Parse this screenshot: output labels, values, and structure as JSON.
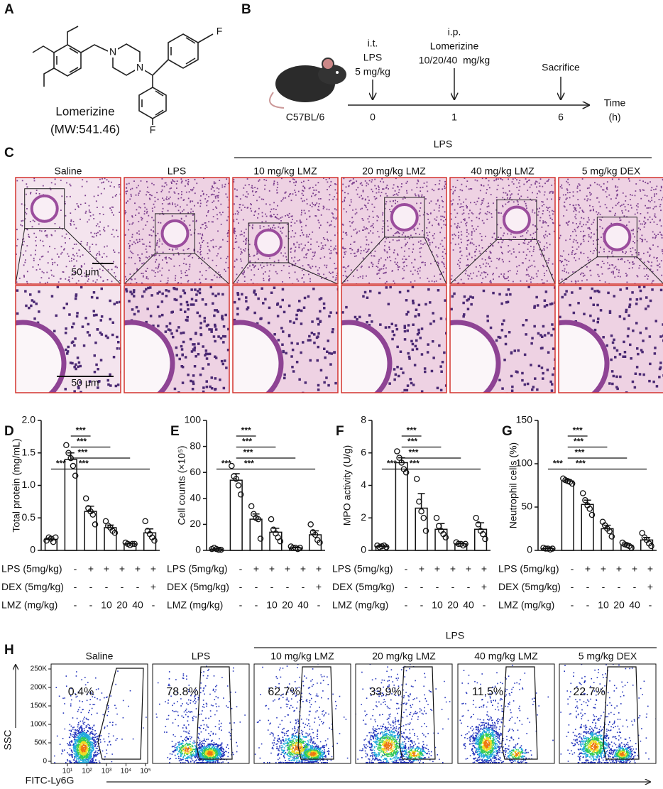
{
  "panel_labels": [
    "A",
    "B",
    "C",
    "D",
    "E",
    "F",
    "G",
    "H"
  ],
  "structure": {
    "atoms": [
      "N",
      "N",
      "F",
      "F"
    ],
    "name": "Lomerizine",
    "mw": "(MW:541.46)"
  },
  "timeline": {
    "strain": "C57BL/6",
    "events": [
      {
        "route": "i.t.",
        "drug": "LPS",
        "dose": "5 mg/kg",
        "time": "0"
      },
      {
        "route": "i.p.",
        "drug": "Lomerizine",
        "dose": "10/20/40  mg/kg",
        "time": "1"
      },
      {
        "drug": "Sacrifice",
        "time": "6"
      }
    ],
    "axis_label": "Time",
    "axis_unit": "(h)"
  },
  "histology": {
    "treatment_header": "LPS",
    "groups": [
      "Saline",
      "LPS",
      "10 mg/kg LMZ",
      "20 mg/kg LMZ",
      "40 mg/kg LMZ",
      "5 mg/kg DEX"
    ],
    "scale_bars": [
      "50 μm",
      "50 μm"
    ]
  },
  "chart_data": [
    {
      "type": "bar",
      "y_label": "Total protein (mg/mL)",
      "color": "#ffffff",
      "values": [
        0.17,
        1.4,
        0.6,
        0.35,
        0.1,
        0.27
      ],
      "errors": [
        0.02,
        0.1,
        0.08,
        0.04,
        0.01,
        0.06
      ],
      "points": [
        [
          0.15,
          0.2,
          0.18,
          0.13,
          0.2
        ],
        [
          1.62,
          1.5,
          1.42,
          1.3,
          1.15
        ],
        [
          0.8,
          0.65,
          0.6,
          0.55,
          0.4
        ],
        [
          0.45,
          0.38,
          0.35,
          0.3,
          0.27
        ],
        [
          0.12,
          0.1,
          0.08,
          0.1,
          0.1
        ],
        [
          0.45,
          0.3,
          0.25,
          0.2,
          0.15
        ]
      ],
      "ylim": [
        0,
        2
      ],
      "yticks": [
        0,
        0.5,
        {
          "value": 1,
          "label": "1.0"
        },
        1.5,
        {
          "value": 2,
          "label": "2.0"
        }
      ],
      "significance_labels": [
        "***",
        "***",
        "***",
        "***",
        "***"
      ],
      "conditions": [
        {
          "name": "LPS (5mg/kg)",
          "values": [
            "-",
            "+",
            "+",
            "+",
            "+",
            "+"
          ]
        },
        {
          "name": "DEX (5mg/kg)",
          "values": [
            "-",
            "-",
            "-",
            "-",
            "-",
            "+"
          ]
        },
        {
          "name": "LMZ (mg/kg)",
          "values": [
            "-",
            "-",
            "10",
            "20",
            "40",
            "-"
          ]
        }
      ]
    },
    {
      "type": "bar",
      "y_label": "Cell counts (×10⁵)",
      "color": "#ffffff",
      "values": [
        1,
        54,
        24,
        14,
        2,
        12
      ],
      "errors": [
        0.4,
        5,
        4,
        3,
        0.5,
        3
      ],
      "points": [
        [
          1,
          2,
          1,
          0.5,
          0.5
        ],
        [
          65,
          57,
          55,
          50,
          43
        ],
        [
          34,
          28,
          25,
          24,
          9
        ],
        [
          24,
          16,
          13,
          10,
          7
        ],
        [
          3,
          2,
          2,
          1,
          2
        ],
        [
          20,
          14,
          12,
          8,
          6
        ]
      ],
      "ylim": [
        0,
        100
      ],
      "yticks": [
        0,
        20,
        40,
        60,
        80,
        100
      ],
      "significance_labels": [
        "***",
        "***",
        "***",
        "***",
        "***"
      ],
      "conditions": [
        {
          "name": "LPS (5mg/kg)",
          "values": [
            "-",
            "+",
            "+",
            "+",
            "+",
            "+"
          ]
        },
        {
          "name": "DEX (5mg/kg)",
          "values": [
            "-",
            "-",
            "-",
            "-",
            "-",
            "+"
          ]
        },
        {
          "name": "LMZ (mg/kg)",
          "values": [
            "-",
            "-",
            "10",
            "20",
            "40",
            "-"
          ]
        }
      ]
    },
    {
      "type": "bar",
      "y_label": "MPO activity (U/g)",
      "color": "#ffffff",
      "values": [
        0.25,
        5.4,
        2.6,
        1.3,
        0.4,
        1.3
      ],
      "errors": [
        0.03,
        0.3,
        0.9,
        0.35,
        0.05,
        0.4
      ],
      "points": [
        [
          0.3,
          0.2,
          0.25,
          0.3,
          0.2
        ],
        [
          6.1,
          5.7,
          5.4,
          5.0,
          4.8
        ],
        [
          4.4,
          3,
          2.4,
          2,
          1.2
        ],
        [
          2,
          1.5,
          1.2,
          1,
          0.8
        ],
        [
          0.5,
          0.4,
          0.4,
          0.3,
          0.4
        ],
        [
          2,
          1.6,
          1.2,
          1,
          0.7
        ]
      ],
      "ylim": [
        0,
        8
      ],
      "yticks": [
        0,
        2,
        4,
        6,
        8
      ],
      "significance_labels": [
        "***",
        "***",
        "***",
        "***",
        "***"
      ],
      "conditions": [
        {
          "name": "LPS (5mg/kg)",
          "values": [
            "-",
            "+",
            "+",
            "+",
            "+",
            "+"
          ]
        },
        {
          "name": "DEX (5mg/kg)",
          "values": [
            "-",
            "-",
            "-",
            "-",
            "-",
            "+"
          ]
        },
        {
          "name": "LMZ (mg/kg)",
          "values": [
            "-",
            "-",
            "10",
            "20",
            "40",
            "-"
          ]
        }
      ]
    },
    {
      "type": "bar",
      "y_label": "Neutrophil cells (%)",
      "color": "#ffffff",
      "values": [
        2,
        80,
        53,
        25,
        6,
        12
      ],
      "errors": [
        0.5,
        1.5,
        5,
        4,
        1.5,
        3
      ],
      "points": [
        [
          3,
          2,
          2,
          1,
          2
        ],
        [
          83,
          81,
          80,
          79,
          77
        ],
        [
          66,
          58,
          52,
          48,
          41
        ],
        [
          33,
          29,
          25,
          22,
          16
        ],
        [
          9,
          7,
          6,
          5,
          3
        ],
        [
          20,
          15,
          12,
          8,
          5
        ]
      ],
      "ylim": [
        0,
        150
      ],
      "yticks": [
        0,
        50,
        100,
        150
      ],
      "significance_labels": [
        "***",
        "***",
        "***",
        "***",
        "***"
      ],
      "conditions": [
        {
          "name": "LPS (5mg/kg)",
          "values": [
            "-",
            "+",
            "+",
            "+",
            "+",
            "+"
          ]
        },
        {
          "name": "DEX (5mg/kg)",
          "values": [
            "-",
            "-",
            "-",
            "-",
            "-",
            "+"
          ]
        },
        {
          "name": "LMZ (mg/kg)",
          "values": [
            "-",
            "-",
            "10",
            "20",
            "40",
            "-"
          ]
        }
      ]
    }
  ],
  "flow": {
    "treatment_header": "LPS",
    "groups": [
      "Saline",
      "LPS",
      "10 mg/kg LMZ",
      "20 mg/kg LMZ",
      "40 mg/kg LMZ",
      "5 mg/kg DEX"
    ],
    "percentages": [
      "0.4%",
      "78.8%",
      "62.7%",
      "33.9%",
      "11.5%",
      "22.7%"
    ],
    "yticks": [
      "250K",
      "200K",
      "150K",
      "100K",
      "50K",
      "0"
    ],
    "xticks": [
      "10¹",
      "10²",
      "10³",
      "10⁴",
      "10⁵"
    ],
    "y_label": "SSC",
    "x_label": "FITC-Ly6G"
  }
}
